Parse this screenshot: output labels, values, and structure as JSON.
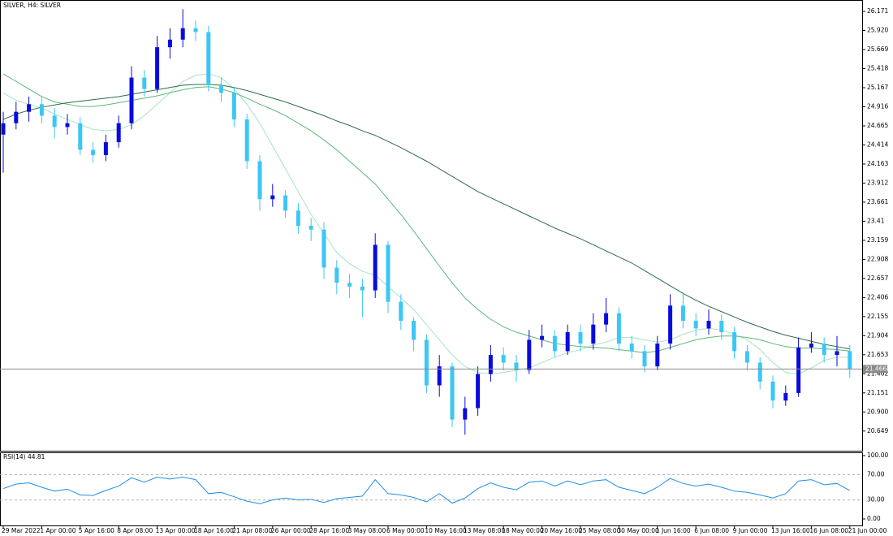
{
  "chart_data": [
    {
      "type": "candlestick",
      "title": "SILVER, H4:  SILVER",
      "categories": [
        "29 Mar 2022",
        null,
        null,
        "1 Apr 00:00",
        null,
        null,
        "5 Apr 16:00",
        null,
        null,
        "8 Apr 08:00",
        null,
        null,
        "13 Apr 00:00",
        null,
        null,
        "18 Apr 16:00",
        null,
        null,
        "21 Apr 08:00",
        null,
        null,
        "26 Apr 00:00",
        null,
        null,
        "28 Apr 16:00",
        null,
        null,
        "3 May 08:00",
        null,
        null,
        "6 May 00:00",
        null,
        null,
        "10 May 16:00",
        null,
        null,
        "13 May 08:00",
        null,
        null,
        "18 May 00:00",
        null,
        null,
        "20 May 16:00",
        null,
        null,
        "25 May 08:00",
        null,
        null,
        "30 May 00:00",
        null,
        null,
        "1 Jun 16:00",
        null,
        null,
        "6 Jun 08:00",
        null,
        null,
        "9 Jun 00:00",
        null,
        null,
        "13 Jun 16:00",
        null,
        null,
        "16 Jun 08:00",
        null,
        null,
        "21 Jun 00:00"
      ],
      "open": [
        24.55,
        24.7,
        24.85,
        24.95,
        24.8,
        24.65,
        24.7,
        24.35,
        24.28,
        24.45,
        24.7,
        25.3,
        25.15,
        25.7,
        25.8,
        25.95,
        25.9,
        25.2,
        25.1,
        24.75,
        24.2,
        23.7,
        23.75,
        23.55,
        23.35,
        23.3,
        22.8,
        22.6,
        22.55,
        22.5,
        23.1,
        22.35,
        22.1,
        21.85,
        21.25,
        21.5,
        20.8,
        20.95,
        21.4,
        21.65,
        21.55,
        21.45,
        21.85,
        21.9,
        21.7,
        21.95,
        21.8,
        22.05,
        22.2,
        21.8,
        21.7,
        21.5,
        21.8,
        22.3,
        22.1,
        22.0,
        22.1,
        21.95,
        21.7,
        21.55,
        21.3,
        21.05,
        21.15,
        21.75,
        21.8,
        21.65,
        21.7
      ],
      "high": [
        24.85,
        24.98,
        25.05,
        25.05,
        24.9,
        24.82,
        24.78,
        24.45,
        24.55,
        24.8,
        25.45,
        25.4,
        25.85,
        25.95,
        26.2,
        26.05,
        25.98,
        25.3,
        25.18,
        24.82,
        24.28,
        23.9,
        23.82,
        23.65,
        23.45,
        23.4,
        22.9,
        22.72,
        22.65,
        23.25,
        23.15,
        22.45,
        22.15,
        21.92,
        21.65,
        21.55,
        21.1,
        21.5,
        21.78,
        21.75,
        21.65,
        21.98,
        22.05,
        21.98,
        22.05,
        22.05,
        22.2,
        22.4,
        22.28,
        21.9,
        21.78,
        21.9,
        22.45,
        22.48,
        22.2,
        22.25,
        22.18,
        22.02,
        21.78,
        21.62,
        21.38,
        21.25,
        21.88,
        21.95,
        21.88,
        21.9,
        21.78
      ],
      "low": [
        24.05,
        24.62,
        24.72,
        24.7,
        24.5,
        24.55,
        24.28,
        24.18,
        24.2,
        24.38,
        24.62,
        25.05,
        25.1,
        25.55,
        25.7,
        25.78,
        25.12,
        24.98,
        24.65,
        24.1,
        23.55,
        23.6,
        23.45,
        23.25,
        23.15,
        22.65,
        22.45,
        22.4,
        22.15,
        22.4,
        22.2,
        21.98,
        21.7,
        21.15,
        21.1,
        20.7,
        20.6,
        20.85,
        21.3,
        21.45,
        21.3,
        21.4,
        21.75,
        21.62,
        21.65,
        21.7,
        21.72,
        21.95,
        21.7,
        21.6,
        21.42,
        21.45,
        21.72,
        22.0,
        21.9,
        21.92,
        21.85,
        21.6,
        21.45,
        21.2,
        20.95,
        20.98,
        21.1,
        21.68,
        21.55,
        21.5,
        21.35
      ],
      "close": [
        24.7,
        24.85,
        24.95,
        24.8,
        24.65,
        24.7,
        24.35,
        24.28,
        24.45,
        24.7,
        25.3,
        25.15,
        25.7,
        25.8,
        25.95,
        25.9,
        25.2,
        25.1,
        24.75,
        24.2,
        23.7,
        23.75,
        23.55,
        23.35,
        23.3,
        22.8,
        22.6,
        22.55,
        22.5,
        23.1,
        22.35,
        22.1,
        21.85,
        21.25,
        21.5,
        20.8,
        20.95,
        21.4,
        21.65,
        21.55,
        21.45,
        21.85,
        21.9,
        21.7,
        21.95,
        21.8,
        22.05,
        22.2,
        21.8,
        21.7,
        21.5,
        21.8,
        22.3,
        22.1,
        22.0,
        22.1,
        21.95,
        21.7,
        21.55,
        21.3,
        21.05,
        21.15,
        21.75,
        21.8,
        21.65,
        21.7,
        21.47
      ],
      "up_color": "#0a0ae0",
      "down_color": "#3cc6f5",
      "series": [
        {
          "color": "#a6e4c0",
          "values": [
            25.1,
            25.0,
            24.95,
            24.9,
            24.82,
            24.75,
            24.68,
            24.62,
            24.6,
            24.62,
            24.68,
            24.8,
            24.95,
            25.1,
            25.25,
            25.33,
            25.35,
            25.3,
            25.15,
            24.95,
            24.7,
            24.4,
            24.1,
            23.8,
            23.5,
            23.25,
            23.0,
            22.85,
            22.75,
            22.7,
            22.55,
            22.4,
            22.25,
            22.05,
            21.85,
            21.65,
            21.5,
            21.42,
            21.4,
            21.42,
            21.45,
            21.48,
            21.55,
            21.62,
            21.68,
            21.72,
            21.78,
            21.82,
            21.88,
            21.88,
            21.85,
            21.82,
            21.85,
            21.92,
            21.98,
            22.0,
            21.98,
            21.92,
            21.85,
            21.72,
            21.55,
            21.42,
            21.4,
            21.48,
            21.58,
            21.62,
            21.62
          ]
        },
        {
          "color": "#5cb878",
          "values": [
            25.35,
            25.25,
            25.15,
            25.05,
            24.98,
            24.95,
            24.92,
            24.92,
            24.94,
            24.97,
            25.0,
            25.03,
            25.06,
            25.1,
            25.14,
            25.17,
            25.18,
            25.15,
            25.1,
            25.03,
            24.95,
            24.88,
            24.8,
            24.7,
            24.6,
            24.48,
            24.35,
            24.2,
            24.05,
            23.9,
            23.7,
            23.5,
            23.28,
            23.05,
            22.82,
            22.6,
            22.4,
            22.25,
            22.12,
            22.02,
            21.95,
            21.9,
            21.85,
            21.8,
            21.78,
            21.76,
            21.75,
            21.74,
            21.72,
            21.7,
            21.68,
            21.7,
            21.75,
            21.8,
            21.85,
            21.88,
            21.9,
            21.9,
            21.88,
            21.85,
            21.8,
            21.76,
            21.74,
            21.74,
            21.73,
            21.72,
            21.7
          ]
        },
        {
          "color": "#2f6b4c",
          "values": [
            24.75,
            24.82,
            24.87,
            24.91,
            24.94,
            24.97,
            24.99,
            25.01,
            25.03,
            25.05,
            25.08,
            25.11,
            25.14,
            25.17,
            25.2,
            25.21,
            25.21,
            25.2,
            25.17,
            25.13,
            25.08,
            25.03,
            24.98,
            24.92,
            24.86,
            24.8,
            24.73,
            24.67,
            24.6,
            24.54,
            24.46,
            24.38,
            24.29,
            24.2,
            24.1,
            24.0,
            23.9,
            23.8,
            23.72,
            23.64,
            23.56,
            23.48,
            23.4,
            23.32,
            23.25,
            23.18,
            23.1,
            23.02,
            22.94,
            22.86,
            22.76,
            22.66,
            22.56,
            22.46,
            22.37,
            22.29,
            22.22,
            22.15,
            22.08,
            22.02,
            21.96,
            21.91,
            21.87,
            21.83,
            21.79,
            21.76,
            21.73
          ]
        }
      ],
      "current": 21.466,
      "ylim": [
        20.39,
        26.3
      ],
      "yticks": [
        26.171,
        {
          "value": 25.92,
          "label": "25.920"
        },
        25.669,
        25.418,
        25.167,
        24.916,
        24.665,
        24.414,
        24.163,
        23.912,
        23.661,
        23.41,
        23.159,
        22.908,
        22.657,
        22.406,
        22.155,
        21.904,
        21.653,
        21.402,
        21.151,
        {
          "value": 20.9,
          "label": "20.900"
        },
        20.649
      ]
    },
    {
      "type": "line",
      "title": "RSI(14) 44.81",
      "color": "#1e8fe6",
      "values": [
        48,
        55,
        57,
        50,
        44,
        47,
        38,
        37,
        45,
        52,
        65,
        58,
        66,
        63,
        66,
        62,
        40,
        42,
        35,
        28,
        24,
        30,
        33,
        30,
        31,
        26,
        32,
        34,
        36,
        62,
        40,
        38,
        34,
        27,
        40,
        25,
        33,
        48,
        57,
        50,
        46,
        58,
        60,
        52,
        60,
        54,
        60,
        62,
        50,
        45,
        40,
        50,
        64,
        56,
        52,
        55,
        50,
        44,
        42,
        38,
        33,
        40,
        60,
        62,
        54,
        56,
        44.81
      ],
      "ylim": [
        0,
        100
      ],
      "yticks": [
        {
          "value": 100,
          "label": "100.00"
        },
        {
          "value": 70,
          "label": "70.00"
        },
        {
          "value": 30,
          "label": "30.00"
        },
        {
          "value": 0,
          "label": "0.00"
        }
      ]
    }
  ]
}
